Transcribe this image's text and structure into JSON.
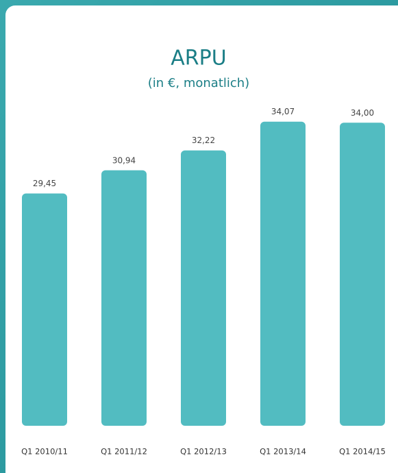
{
  "chart_data": {
    "type": "bar",
    "title": "ARPU",
    "subtitle": "(in €, monatlich)",
    "categories": [
      "Q1 2010/11",
      "Q1 2011/12",
      "Q1 2012/13",
      "Q1 2013/14",
      "Q1 2014/15"
    ],
    "values": [
      29.45,
      30.94,
      32.22,
      34.07,
      34.0
    ],
    "value_labels": [
      "29,45",
      "30,94",
      "32,22",
      "34,07",
      "34,00"
    ],
    "color": "#52bcc1",
    "ylim": [
      14.5,
      35
    ]
  }
}
